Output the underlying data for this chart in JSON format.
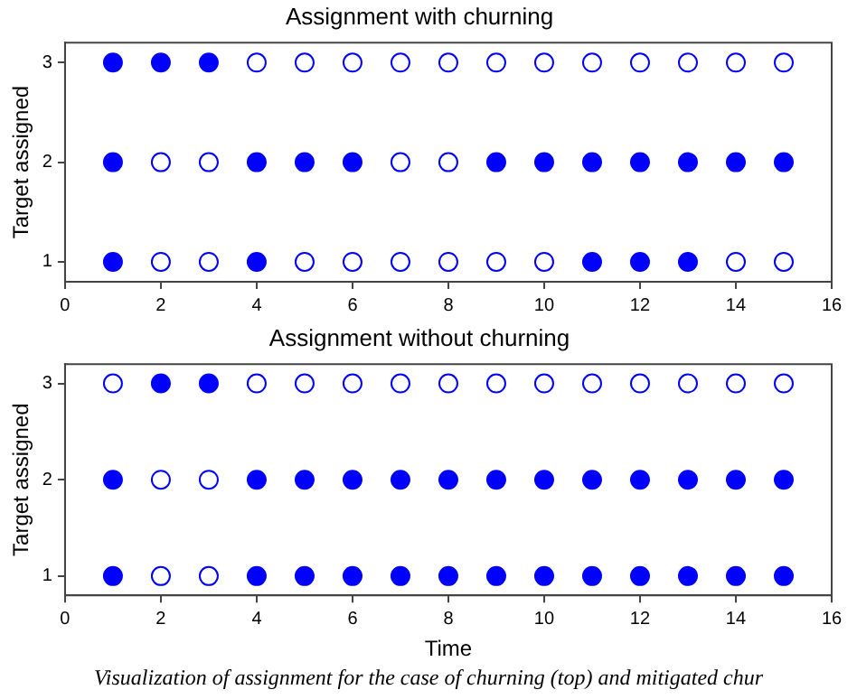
{
  "chart_data": [
    {
      "type": "scatter",
      "title": "Assignment with churning",
      "ylabel": "Target assigned",
      "xlim": [
        0,
        16
      ],
      "xticks": [
        0,
        2,
        4,
        6,
        8,
        10,
        12,
        14,
        16
      ],
      "ylim": [
        0.8,
        3.2
      ],
      "yticks": [
        1,
        2,
        3
      ],
      "grid": false,
      "legend": false,
      "marker": "circle",
      "series": [
        {
          "color": "#0000ff",
          "x": [
            1,
            2,
            3,
            1,
            4,
            5,
            6,
            9,
            10,
            11,
            12,
            13,
            14,
            15,
            1,
            4,
            11,
            12,
            13
          ],
          "values": [
            3,
            3,
            3,
            2,
            2,
            2,
            2,
            2,
            2,
            2,
            2,
            2,
            2,
            2,
            1,
            1,
            1,
            1,
            1
          ]
        },
        {
          "color": "#ffffff",
          "x": [
            4,
            5,
            6,
            7,
            8,
            9,
            10,
            11,
            12,
            13,
            14,
            15,
            2,
            3,
            7,
            8,
            2,
            3,
            5,
            6,
            7,
            8,
            9,
            10,
            14,
            15
          ],
          "values": [
            3,
            3,
            3,
            3,
            3,
            3,
            3,
            3,
            3,
            3,
            3,
            3,
            2,
            2,
            2,
            2,
            1,
            1,
            1,
            1,
            1,
            1,
            1,
            1,
            1,
            1
          ]
        }
      ]
    },
    {
      "type": "scatter",
      "title": "Assignment without churning",
      "xlabel": "Time",
      "ylabel": "Target assigned",
      "xlim": [
        0,
        16
      ],
      "xticks": [
        0,
        2,
        4,
        6,
        8,
        10,
        12,
        14,
        16
      ],
      "ylim": [
        0.8,
        3.2
      ],
      "yticks": [
        1,
        2,
        3
      ],
      "grid": false,
      "legend": false,
      "marker": "circle",
      "annotations": [
        "Visualization of assignment for the case of churning (top) and mitigated chur"
      ],
      "series": [
        {
          "color": "#0000ff",
          "x": [
            2,
            3,
            1,
            4,
            5,
            6,
            7,
            8,
            9,
            10,
            11,
            12,
            13,
            14,
            15,
            1,
            4,
            5,
            6,
            7,
            8,
            9,
            10,
            11,
            12,
            13,
            14,
            15
          ],
          "values": [
            3,
            3,
            2,
            2,
            2,
            2,
            2,
            2,
            2,
            2,
            2,
            2,
            2,
            2,
            2,
            1,
            1,
            1,
            1,
            1,
            1,
            1,
            1,
            1,
            1,
            1,
            1,
            1
          ]
        },
        {
          "color": "#ffffff",
          "x": [
            1,
            4,
            5,
            6,
            7,
            8,
            9,
            10,
            11,
            12,
            13,
            14,
            15,
            2,
            3,
            2,
            3
          ],
          "values": [
            3,
            3,
            3,
            3,
            3,
            3,
            3,
            3,
            3,
            3,
            3,
            3,
            3,
            2,
            2,
            1,
            1
          ]
        }
      ]
    }
  ]
}
